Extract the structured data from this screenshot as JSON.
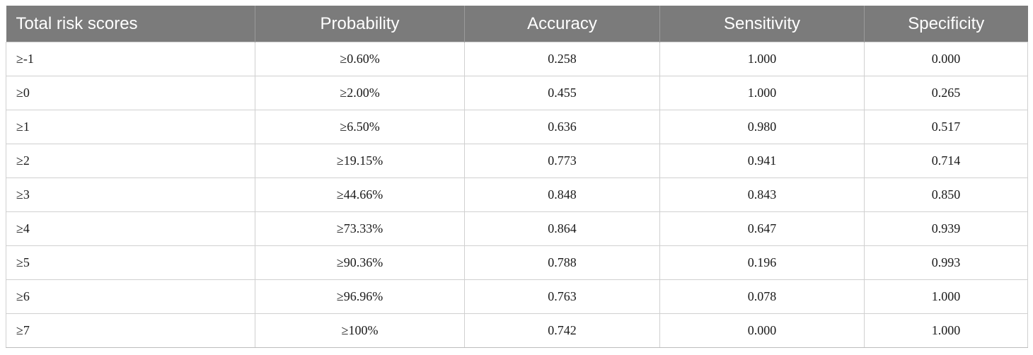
{
  "table": {
    "headers": [
      "Total risk scores",
      "Probability",
      "Accuracy",
      "Sensitivity",
      "Specificity"
    ],
    "rows": [
      [
        "≥-1",
        "≥0.60%",
        "0.258",
        "1.000",
        "0.000"
      ],
      [
        "≥0",
        "≥2.00%",
        "0.455",
        "1.000",
        "0.265"
      ],
      [
        "≥1",
        "≥6.50%",
        "0.636",
        "0.980",
        "0.517"
      ],
      [
        "≥2",
        "≥19.15%",
        "0.773",
        "0.941",
        "0.714"
      ],
      [
        "≥3",
        "≥44.66%",
        "0.848",
        "0.843",
        "0.850"
      ],
      [
        "≥4",
        "≥73.33%",
        "0.864",
        "0.647",
        "0.939"
      ],
      [
        "≥5",
        "≥90.36%",
        "0.788",
        "0.196",
        "0.993"
      ],
      [
        "≥6",
        "≥96.96%",
        "0.763",
        "0.078",
        "1.000"
      ],
      [
        "≥7",
        "≥100%",
        "0.742",
        "0.000",
        "1.000"
      ]
    ],
    "header_bg_color": "#7b7b7b",
    "header_text_color": "#ffffff"
  }
}
